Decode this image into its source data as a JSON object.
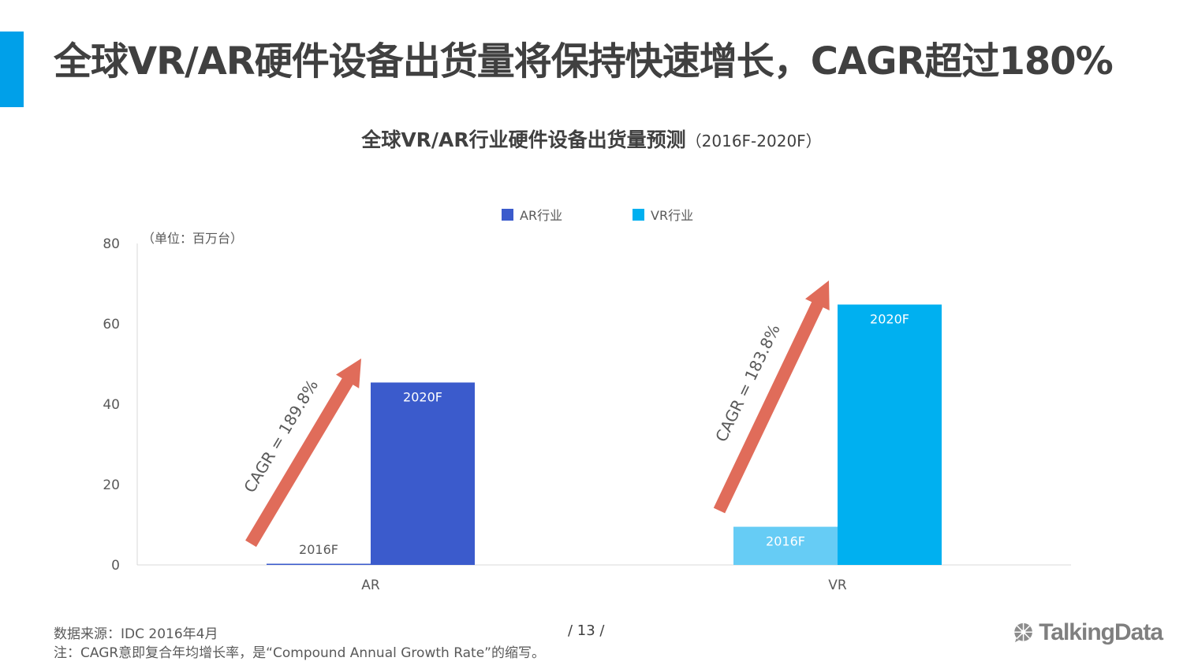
{
  "slide": {
    "title": "全球VR/AR硬件设备出货量将保持快速增长，CAGR超过180%",
    "page_number": "/  13  /",
    "source": "数据来源：IDC 2016年4月",
    "note": "注：CAGR意即复合年均增长率，是“Compound Annual Growth Rate”的缩写。",
    "logo_text": "TalkingData",
    "logo_icon": "talkingdata-logo-icon",
    "accent_color": "#00a0e9"
  },
  "chart_data": {
    "type": "bar",
    "title": "全球VR/AR行业硬件设备出货量预测",
    "subtitle": "（2016F-2020F）",
    "unit_label": "（单位：百万台）",
    "categories": [
      "AR",
      "VR"
    ],
    "ylim": [
      0,
      80
    ],
    "yticks": [
      "0",
      "20",
      "40",
      "60",
      "80"
    ],
    "legend_placement": "top",
    "legend": [
      {
        "name": "AR行业",
        "color": "#3b5bcc"
      },
      {
        "name": "VR行业",
        "color": "#00b0f0"
      }
    ],
    "bars": [
      {
        "category": "AR",
        "label": "2016F",
        "value": 0.3,
        "color": "#3b5bcc"
      },
      {
        "category": "AR",
        "label": "2020F",
        "value": 45.4,
        "color": "#3b5bcc"
      },
      {
        "category": "VR",
        "label": "2016F",
        "value": 9.5,
        "color": "#66ccf5"
      },
      {
        "category": "VR",
        "label": "2020F",
        "value": 64.8,
        "color": "#00b0f0"
      }
    ],
    "annotations": [
      {
        "category": "AR",
        "text": "CAGR = 189.8%",
        "color": "#e06c5a"
      },
      {
        "category": "VR",
        "text": "CAGR = 183.8%",
        "color": "#e06c5a"
      }
    ]
  }
}
